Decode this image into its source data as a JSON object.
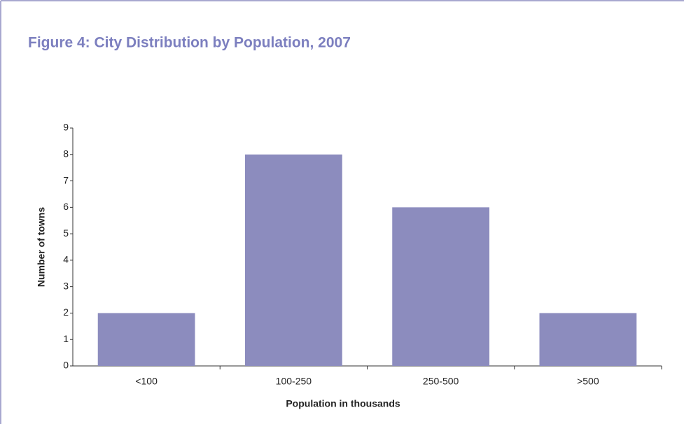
{
  "chart_data": {
    "type": "bar",
    "title": "Figure 4: City Distribution by Population, 2007",
    "x_label": "Population in thousands",
    "y_label": "Number of towns",
    "categories": [
      "<100",
      "100-250",
      "250-500",
      ">500"
    ],
    "values": [
      2,
      8,
      6,
      2
    ],
    "color": "#8c8cbe",
    "ylim": [
      0,
      9
    ],
    "yticks": [
      0,
      1,
      2,
      3,
      4,
      5,
      6,
      7,
      8,
      9
    ],
    "grid": false
  }
}
